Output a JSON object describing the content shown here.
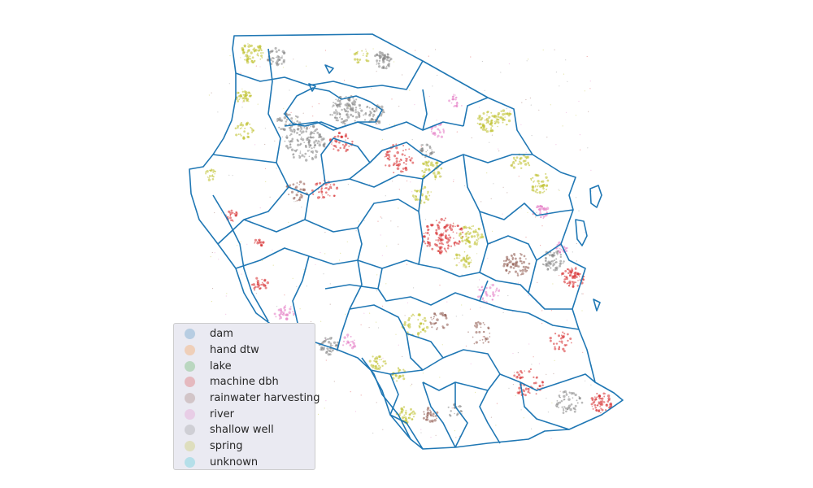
{
  "map": {
    "boundary_color": "#1f77b4",
    "legend_title": "",
    "categories": [
      {
        "label": "dam",
        "color": "#1f77b4"
      },
      {
        "label": "hand dtw",
        "color": "#ff7f0e"
      },
      {
        "label": "lake",
        "color": "#2ca02c"
      },
      {
        "label": "machine dbh",
        "color": "#d62728"
      },
      {
        "label": "rainwater harvesting",
        "color": "#8c564b"
      },
      {
        "label": "river",
        "color": "#e377c2"
      },
      {
        "label": "shallow well",
        "color": "#7f7f7f"
      },
      {
        "label": "spring",
        "color": "#bcbd22"
      },
      {
        "label": "unknown",
        "color": "#17becf"
      }
    ]
  }
}
